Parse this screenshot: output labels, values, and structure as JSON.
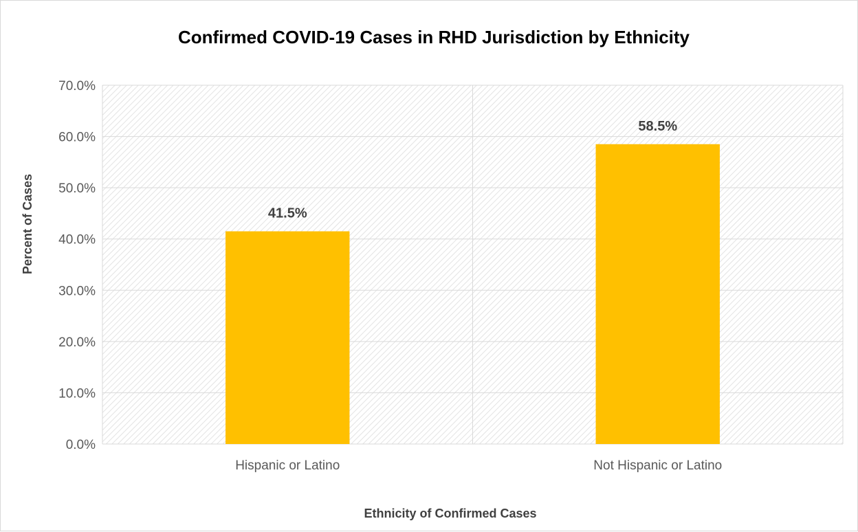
{
  "chart_data": {
    "type": "bar",
    "title": "Confirmed COVID-19 Cases in RHD Jurisdiction by Ethnicity",
    "xlabel": "Ethnicity of Confirmed Cases",
    "ylabel": "Percent of Cases",
    "categories": [
      "Hispanic or Latino",
      "Not Hispanic or Latino"
    ],
    "values": [
      41.5,
      58.5
    ],
    "data_labels": [
      "41.5%",
      "58.5%"
    ],
    "ylim": [
      0,
      70
    ],
    "yticks": [
      0,
      10,
      20,
      30,
      40,
      50,
      60,
      70
    ],
    "ytick_labels": [
      "0.0%",
      "10.0%",
      "20.0%",
      "30.0%",
      "40.0%",
      "50.0%",
      "60.0%",
      "70.0%"
    ],
    "grid": true,
    "legend": "none",
    "colors": {
      "bar": "#FFC000",
      "grid": "#d9d9d9",
      "plot_hatch": "#e3e3e3"
    }
  }
}
